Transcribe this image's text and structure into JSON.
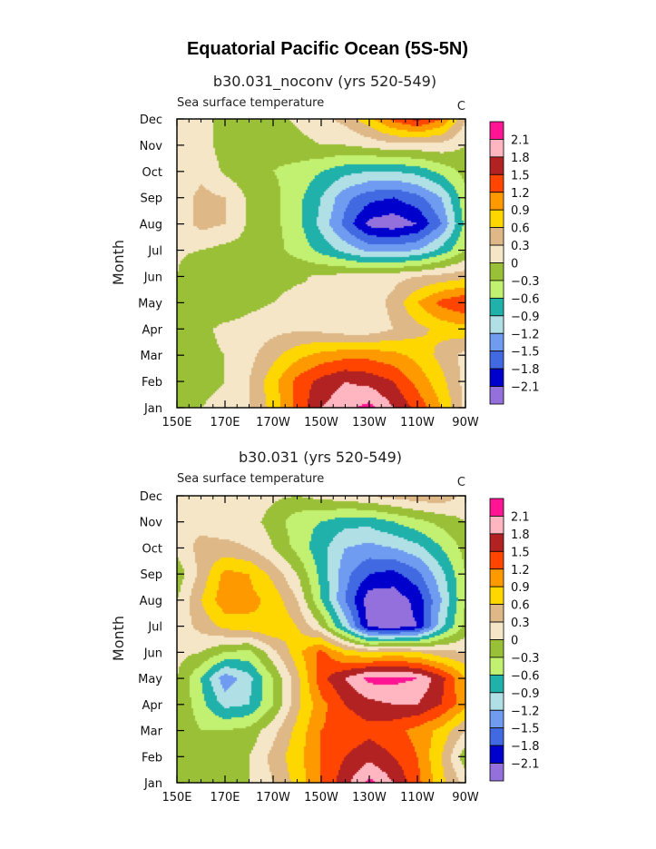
{
  "figure": {
    "title": "Equatorial Pacific Ocean (5S-5N)"
  },
  "chart_data": [
    {
      "type": "heatmap",
      "title": "b30.031_noconv (yrs 520-549)",
      "left_label": "Sea surface temperature",
      "right_label": "C",
      "ylabel": "Month",
      "x_ticks": [
        "150E",
        "170E",
        "170W",
        "150W",
        "130W",
        "110W",
        "90W"
      ],
      "y_ticks": [
        "Jan",
        "Feb",
        "Mar",
        "Apr",
        "May",
        "Jun",
        "Jul",
        "Aug",
        "Sep",
        "Oct",
        "Nov",
        "Dec"
      ],
      "xlim": [
        150,
        270
      ],
      "colorbar": {
        "labels": [
          "2.1",
          "1.8",
          "1.5",
          "1.2",
          "0.9",
          "0.6",
          "0.3",
          "0",
          "−0.3",
          "−0.6",
          "−0.9",
          "−1.2",
          "−1.5",
          "−1.8",
          "−2.1"
        ],
        "levels": [
          -2.1,
          -1.8,
          -1.5,
          -1.2,
          -0.9,
          -0.6,
          -0.3,
          0,
          0.3,
          0.6,
          0.9,
          1.2,
          1.5,
          1.8,
          2.1
        ],
        "colors": [
          "#9370db",
          "#0000cd",
          "#4169e1",
          "#6f9cf0",
          "#b0e0e6",
          "#20b2aa",
          "#c2f070",
          "#9ac037",
          "#f5e6c8",
          "#deb887",
          "#ffd700",
          "#ff9900",
          "#ff4500",
          "#b22222",
          "#ffb6c1",
          "#ff1493"
        ]
      },
      "lon": [
        150,
        160,
        170,
        180,
        190,
        200,
        210,
        220,
        230,
        240,
        250,
        260,
        270
      ],
      "values": [
        [
          0.0,
          0.0,
          0.1,
          0.3,
          0.7,
          1.3,
          1.8,
          2.0,
          2.2,
          1.8,
          1.4,
          0.9,
          0.2
        ],
        [
          0.0,
          -0.1,
          0.0,
          0.3,
          0.8,
          1.3,
          1.6,
          1.8,
          1.7,
          1.5,
          1.1,
          0.7,
          0.2
        ],
        [
          0.0,
          -0.1,
          0.0,
          0.2,
          0.5,
          0.8,
          1.0,
          1.1,
          1.1,
          1.0,
          0.8,
          0.5,
          0.2
        ],
        [
          0.0,
          -0.1,
          0.1,
          0.15,
          0.2,
          0.25,
          0.2,
          0.1,
          0.1,
          0.3,
          0.5,
          0.7,
          0.8
        ],
        [
          0.0,
          -0.3,
          -0.3,
          -0.1,
          0.0,
          0.1,
          0.0,
          0.0,
          0.1,
          0.4,
          0.9,
          1.3,
          1.5
        ],
        [
          0.0,
          -0.3,
          -0.3,
          -0.1,
          -0.1,
          -0.05,
          0.05,
          0.1,
          0.15,
          0.2,
          0.3,
          0.4,
          0.5
        ],
        [
          0.05,
          0.0,
          -0.1,
          -0.1,
          -0.2,
          -0.4,
          -0.7,
          -1.0,
          -1.3,
          -1.3,
          -1.2,
          -0.8,
          -0.3
        ],
        [
          0.1,
          0.4,
          0.3,
          -0.05,
          -0.2,
          -0.5,
          -1.0,
          -1.6,
          -2.2,
          -2.3,
          -2.1,
          -1.5,
          -0.5
        ],
        [
          0.1,
          0.4,
          0.3,
          -0.05,
          -0.2,
          -0.5,
          -0.9,
          -1.4,
          -1.7,
          -1.8,
          -1.6,
          -1.2,
          -0.4
        ],
        [
          0.05,
          0.2,
          -0.05,
          -0.2,
          -0.3,
          -0.4,
          -0.6,
          -0.8,
          -0.9,
          -0.9,
          -0.8,
          -0.5,
          -0.2
        ],
        [
          0.1,
          0.1,
          -0.1,
          -0.2,
          -0.2,
          -0.1,
          0.0,
          0.0,
          0.1,
          0.2,
          0.2,
          0.2,
          0.0
        ],
        [
          0.2,
          0.1,
          -0.1,
          -0.1,
          -0.1,
          0.05,
          0.2,
          0.4,
          0.8,
          1.3,
          1.6,
          1.2,
          0.3
        ]
      ]
    },
    {
      "type": "heatmap",
      "title": "b30.031 (yrs 520-549)",
      "left_label": "Sea surface temperature",
      "right_label": "C",
      "ylabel": "Month",
      "x_ticks": [
        "150E",
        "170E",
        "170W",
        "150W",
        "130W",
        "110W",
        "90W"
      ],
      "y_ticks": [
        "Jan",
        "Feb",
        "Mar",
        "Apr",
        "May",
        "Jun",
        "Jul",
        "Aug",
        "Sep",
        "Oct",
        "Nov",
        "Dec"
      ],
      "xlim": [
        150,
        270
      ],
      "colorbar": {
        "labels": [
          "2.1",
          "1.8",
          "1.5",
          "1.2",
          "0.9",
          "0.6",
          "0.3",
          "0",
          "−0.3",
          "−0.6",
          "−0.9",
          "−1.2",
          "−1.5",
          "−1.8",
          "−2.1"
        ],
        "levels": [
          -2.1,
          -1.8,
          -1.5,
          -1.2,
          -0.9,
          -0.6,
          -0.3,
          0,
          0.3,
          0.6,
          0.9,
          1.2,
          1.5,
          1.8,
          2.1
        ],
        "colors": [
          "#9370db",
          "#0000cd",
          "#4169e1",
          "#6f9cf0",
          "#b0e0e6",
          "#20b2aa",
          "#c2f070",
          "#9ac037",
          "#f5e6c8",
          "#deb887",
          "#ffd700",
          "#ff9900",
          "#ff4500",
          "#b22222",
          "#ffb6c1",
          "#ff1493"
        ]
      },
      "lon": [
        150,
        160,
        170,
        180,
        190,
        200,
        210,
        220,
        230,
        240,
        250,
        260,
        270
      ],
      "values": [
        [
          0.0,
          -0.3,
          -0.3,
          0.0,
          0.3,
          0.7,
          1.2,
          1.7,
          2.2,
          1.8,
          1.3,
          0.7,
          0.2
        ],
        [
          0.0,
          -0.3,
          -0.3,
          0.0,
          0.4,
          0.8,
          1.2,
          1.5,
          1.7,
          1.5,
          1.2,
          0.6,
          -0.2
        ],
        [
          0.0,
          -0.3,
          -0.3,
          -0.2,
          0.2,
          0.7,
          1.2,
          1.3,
          1.4,
          1.3,
          1.1,
          0.8,
          0.3
        ],
        [
          0.0,
          -0.5,
          -1.0,
          -0.9,
          -0.3,
          0.5,
          1.1,
          1.5,
          1.7,
          1.8,
          1.8,
          1.5,
          1.0
        ],
        [
          0.0,
          -0.6,
          -1.4,
          -1.0,
          -0.3,
          0.5,
          1.4,
          1.8,
          2.2,
          2.2,
          2.1,
          1.6,
          0.9
        ],
        [
          0.1,
          0.0,
          -0.3,
          -0.4,
          0.2,
          0.8,
          1.3,
          0.8,
          0.6,
          0.7,
          0.6,
          0.4,
          0.3
        ],
        [
          0.1,
          0.4,
          0.7,
          0.8,
          0.9,
          0.6,
          0.0,
          -1.0,
          -2.2,
          -2.3,
          -2.1,
          -1.0,
          -0.2
        ],
        [
          0.0,
          0.6,
          1.1,
          1.0,
          0.8,
          0.3,
          -0.6,
          -1.5,
          -2.3,
          -2.3,
          -2.0,
          -1.2,
          -0.3
        ],
        [
          -0.2,
          0.4,
          1.0,
          0.9,
          0.5,
          0.0,
          -0.7,
          -1.4,
          -1.8,
          -1.9,
          -1.6,
          -1.0,
          -0.3
        ],
        [
          0.1,
          0.4,
          0.4,
          0.3,
          0.0,
          -0.4,
          -0.8,
          -1.2,
          -1.3,
          -1.2,
          -1.0,
          -0.6,
          -0.2
        ],
        [
          0.3,
          0.2,
          0.1,
          0.1,
          -0.1,
          -0.5,
          -0.6,
          -0.8,
          -0.8,
          -0.6,
          -0.4,
          -0.2,
          0.0
        ],
        [
          0.2,
          0.2,
          0.1,
          0.1,
          0.05,
          0.0,
          0.1,
          0.2,
          0.3,
          0.4,
          0.5,
          0.5,
          0.2
        ]
      ]
    }
  ]
}
